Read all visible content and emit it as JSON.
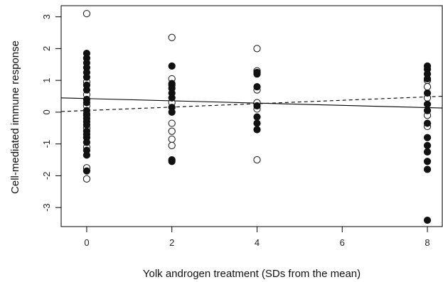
{
  "chart_data": {
    "type": "scatter",
    "title": "",
    "xlabel": "Yolk androgen treatment (SDs from the mean)",
    "ylabel": "Cell-mediated immune response",
    "xlim": [
      -0.6,
      8.35
    ],
    "ylim": [
      -3.6,
      3.35
    ],
    "xticks": [
      0,
      2,
      4,
      6,
      8
    ],
    "yticks": [
      -3,
      -2,
      -1,
      0,
      1,
      2,
      3
    ],
    "grid": false,
    "legend": "none",
    "series": [
      {
        "marker": "open-circle",
        "points": [
          [
            0,
            3.1
          ],
          [
            0,
            0.95
          ],
          [
            0,
            0.55
          ],
          [
            0,
            0.2
          ],
          [
            0,
            -0.1
          ],
          [
            0,
            -0.5
          ],
          [
            0,
            -1.1
          ],
          [
            0,
            -1.75
          ],
          [
            0,
            -2.1
          ],
          [
            2,
            2.35
          ],
          [
            2,
            1.05
          ],
          [
            2,
            0.85
          ],
          [
            2,
            0.3
          ],
          [
            2,
            -0.35
          ],
          [
            2,
            -0.6
          ],
          [
            2,
            -0.85
          ],
          [
            2,
            -1.05
          ],
          [
            4,
            2.0
          ],
          [
            4,
            1.3
          ],
          [
            4,
            0.7
          ],
          [
            4,
            0.3
          ],
          [
            4,
            0.1
          ],
          [
            4,
            -1.5
          ],
          [
            8,
            1.0
          ],
          [
            8,
            0.8
          ],
          [
            8,
            0.45
          ],
          [
            8,
            -0.1
          ],
          [
            8,
            -0.45
          ]
        ]
      },
      {
        "marker": "filled-circle",
        "points": [
          [
            0,
            1.85
          ],
          [
            0,
            1.7
          ],
          [
            0,
            1.55
          ],
          [
            0,
            1.4
          ],
          [
            0,
            1.25
          ],
          [
            0,
            1.1
          ],
          [
            0,
            0.85
          ],
          [
            0,
            0.7
          ],
          [
            0,
            0.4
          ],
          [
            0,
            0.3
          ],
          [
            0,
            0.05
          ],
          [
            0,
            -0.05
          ],
          [
            0,
            -0.2
          ],
          [
            0,
            -0.3
          ],
          [
            0,
            -0.4
          ],
          [
            0,
            -0.6
          ],
          [
            0,
            -0.7
          ],
          [
            0,
            -0.8
          ],
          [
            0,
            -0.95
          ],
          [
            0,
            -1.2
          ],
          [
            0,
            -1.35
          ],
          [
            0,
            -1.85
          ],
          [
            2,
            1.45
          ],
          [
            2,
            0.9
          ],
          [
            2,
            0.75
          ],
          [
            2,
            0.6
          ],
          [
            2,
            0.45
          ],
          [
            2,
            0.15
          ],
          [
            2,
            0.0
          ],
          [
            2,
            -1.5
          ],
          [
            2,
            -1.55
          ],
          [
            4,
            1.25
          ],
          [
            4,
            1.2
          ],
          [
            4,
            0.8
          ],
          [
            4,
            0.2
          ],
          [
            4,
            -0.15
          ],
          [
            4,
            -0.35
          ],
          [
            4,
            -0.55
          ],
          [
            8,
            1.45
          ],
          [
            8,
            1.35
          ],
          [
            8,
            1.2
          ],
          [
            8,
            1.05
          ],
          [
            8,
            0.6
          ],
          [
            8,
            0.25
          ],
          [
            8,
            0.05
          ],
          [
            8,
            -0.35
          ],
          [
            8,
            -0.8
          ],
          [
            8,
            -1.05
          ],
          [
            8,
            -1.25
          ],
          [
            8,
            -1.55
          ],
          [
            8,
            -1.8
          ],
          [
            8,
            -3.4
          ]
        ]
      }
    ],
    "lines": [
      {
        "style": "solid",
        "x": [
          -0.6,
          8.35
        ],
        "y": [
          0.45,
          0.13
        ]
      },
      {
        "style": "dashed",
        "x": [
          -0.6,
          8.35
        ],
        "y": [
          0.02,
          0.5
        ]
      }
    ]
  }
}
